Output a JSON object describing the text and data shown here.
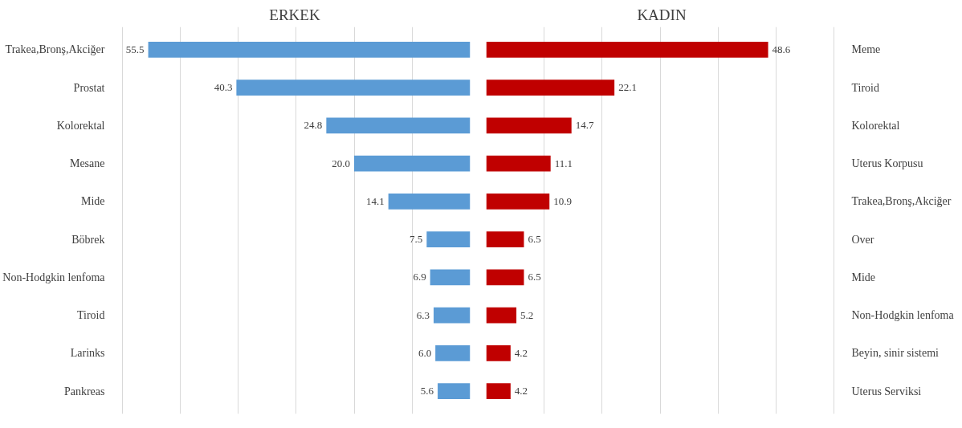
{
  "chart_data": [
    {
      "type": "bar",
      "orientation": "horizontal",
      "title": "ERKEK",
      "categories": [
        "Trakea,Bronş,Akciğer",
        "Prostat",
        "Kolorektal",
        "Mesane",
        "Mide",
        "Böbrek",
        "Non-Hodgkin lenfoma",
        "Tiroid",
        "Larinks",
        "Pankreas"
      ],
      "values": [
        55.5,
        40.3,
        24.8,
        20.0,
        14.1,
        7.5,
        6.9,
        6.3,
        6.0,
        5.6
      ],
      "value_labels": [
        "55.5",
        "40.3",
        "24.8",
        "20.0",
        "14.1",
        "7.5",
        "6.9",
        "6.3",
        "6.0",
        "5.6"
      ],
      "color": "#5b9bd5",
      "grid": "x",
      "tick_labels": "y"
    },
    {
      "type": "bar",
      "orientation": "horizontal",
      "title": "KADIN",
      "categories": [
        "Meme",
        "Tiroid",
        "Kolorektal",
        "Uterus Korpusu",
        "Trakea,Bronş,Akciğer",
        "Over",
        "Mide",
        "Non-Hodgkin lenfoma",
        "Beyin, sinir sistemi",
        "Uterus Serviksi"
      ],
      "values": [
        48.6,
        22.1,
        14.7,
        11.1,
        10.9,
        6.5,
        6.5,
        5.2,
        4.2,
        4.2
      ],
      "value_labels": [
        "48.6",
        "22.1",
        "14.7",
        "11.1",
        "10.9",
        "6.5",
        "6.5",
        "5.2",
        "4.2",
        "4.2"
      ],
      "color": "#c00000",
      "grid": "x",
      "tick_labels": "y"
    }
  ]
}
